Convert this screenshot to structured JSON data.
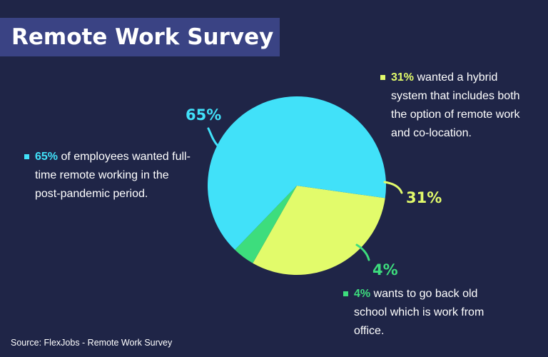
{
  "title": "Remote Work Survey",
  "source": "Source: FlexJobs - Remote Work Survey",
  "chart_data": {
    "type": "pie",
    "title": "Remote Work Survey",
    "slices": [
      {
        "name": "remote",
        "value": 65,
        "label": "65%",
        "color": "#41e1f9",
        "description": "of employees wanted full-time remote working in the post-pandemic period."
      },
      {
        "name": "hybrid",
        "value": 31,
        "label": "31%",
        "color": "#e2fb6b",
        "description": "wanted a hybrid system that includes both the option of remote work and co-location."
      },
      {
        "name": "office",
        "value": 4,
        "label": "4%",
        "color": "#3ddd7d",
        "description": "wants to go back old school which is work from office."
      }
    ]
  },
  "colors": {
    "background": "#1f2547",
    "title_band": "#3a4384"
  }
}
